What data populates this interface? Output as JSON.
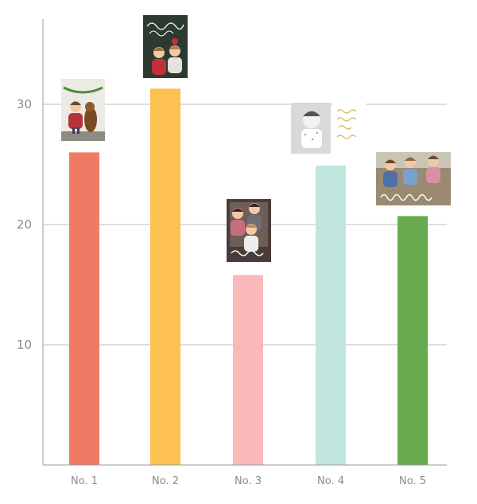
{
  "chart_data": {
    "type": "bar",
    "categories": [
      "No. 1",
      "No. 2",
      "No. 3",
      "No. 4",
      "No. 5"
    ],
    "values": [
      26,
      31.3,
      15.8,
      24.9,
      20.7
    ],
    "colors": [
      "#ef7b65",
      "#fdc152",
      "#f9b9b9",
      "#c1e5df",
      "#68ab4f"
    ],
    "yticks": [
      10,
      20,
      30
    ],
    "ylim": [
      0,
      37
    ],
    "grid": true,
    "title": "",
    "xlabel": "",
    "ylabel": "",
    "annotations": [
      {
        "category": "No. 1",
        "type": "holiday-card-photo",
        "content": "boy and dog card",
        "card_text": "Joy"
      },
      {
        "category": "No. 2",
        "type": "holiday-card-photo",
        "content": "two children card",
        "card_text": "Merry Christmas"
      },
      {
        "category": "No. 3",
        "type": "holiday-card-photo",
        "content": "three children card",
        "card_text": "Wonderful"
      },
      {
        "category": "No. 4",
        "type": "holiday-card-photo",
        "content": "baby photo and gold script card",
        "card_text": ""
      },
      {
        "category": "No. 5",
        "type": "holiday-card-photo",
        "content": "three boys card",
        "card_text": "Happy Holidays"
      }
    ]
  }
}
